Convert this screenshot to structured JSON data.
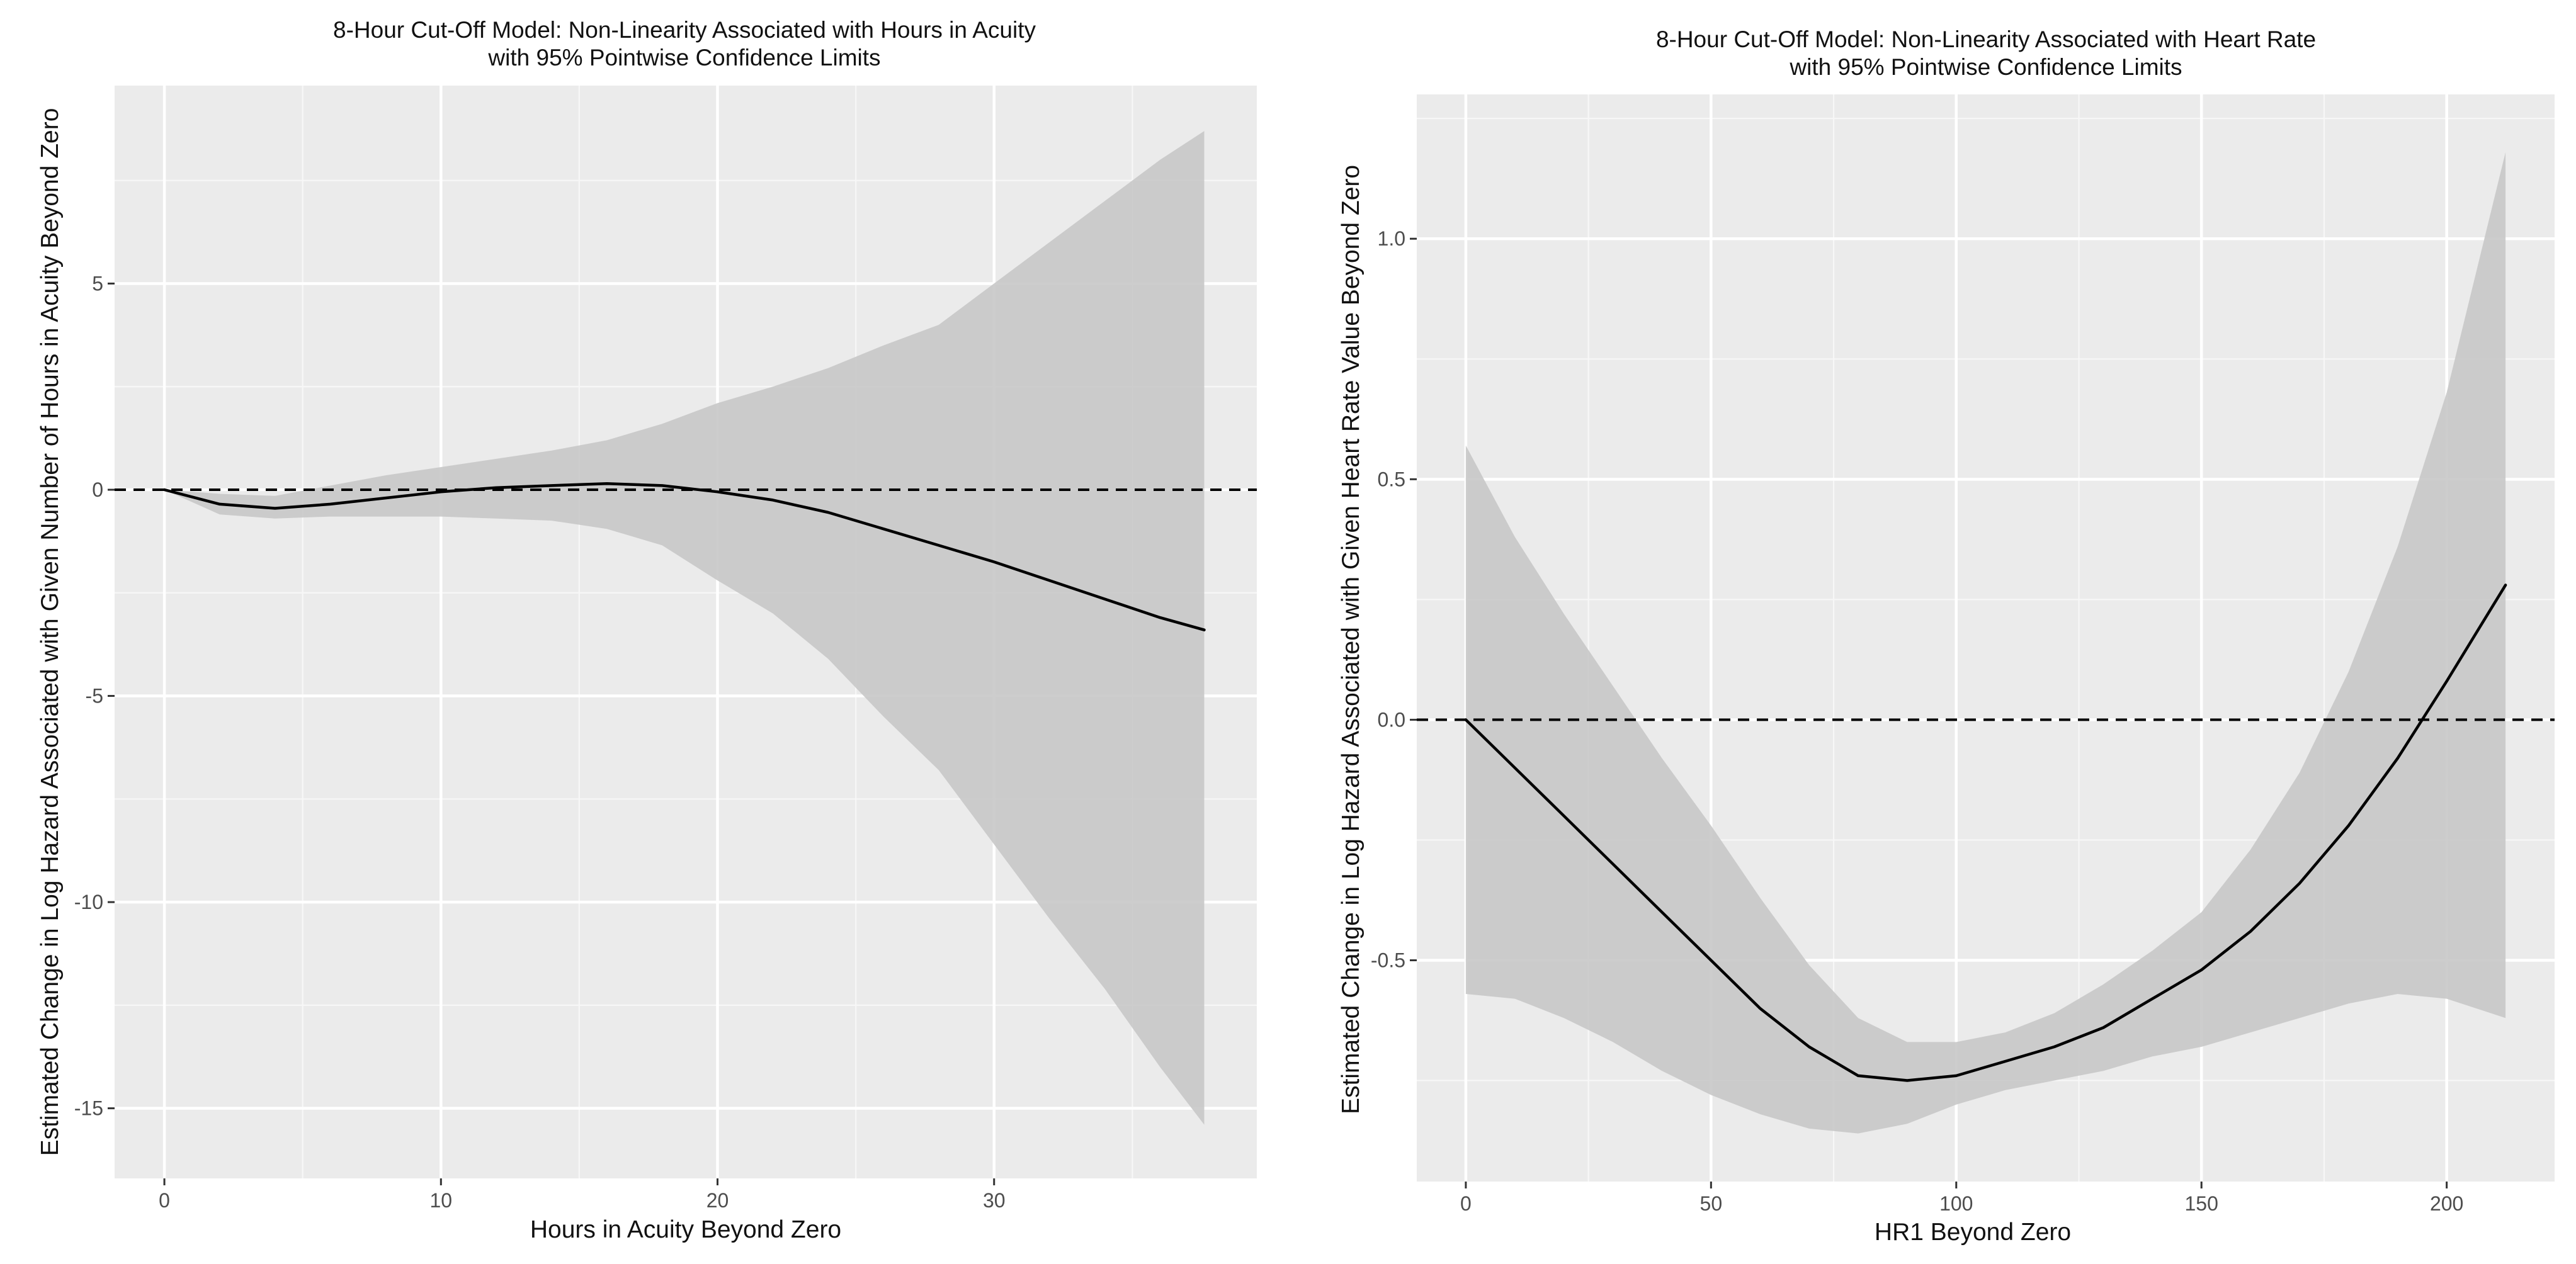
{
  "chart_data": [
    {
      "type": "line",
      "title": "8-Hour Cut-Off Model: Non-Linearity Associated with Hours in Acuity",
      "subtitle": "with 95% Pointwise Confidence Limits",
      "xlabel": "Hours in Acuity Beyond Zero",
      "ylabel": "Estimated Change in Log Hazard Associated with Given Number of Hours in Acuity Beyond Zero",
      "xlim": [
        -1.8,
        39.5
      ],
      "ylim": [
        -16.7,
        9.8
      ],
      "xticks": [
        0,
        10,
        20,
        30
      ],
      "xtick_labels": [
        "0",
        "10",
        "20",
        "30"
      ],
      "yticks": [
        5,
        0,
        -5,
        -10,
        -15
      ],
      "ytick_labels": [
        "5",
        "0",
        "-5",
        "-10",
        "-15"
      ],
      "reference_line_y": 0,
      "grid": true,
      "series": [
        {
          "name": "estimate",
          "x": [
            0,
            2,
            4,
            6,
            8,
            10,
            12,
            14,
            16,
            18,
            20,
            22,
            24,
            26,
            28,
            30,
            32,
            34,
            36,
            37.6
          ],
          "y": [
            0,
            -0.35,
            -0.45,
            -0.35,
            -0.2,
            -0.05,
            0.05,
            0.1,
            0.15,
            0.1,
            -0.05,
            -0.25,
            -0.55,
            -0.95,
            -1.35,
            -1.75,
            -2.2,
            -2.65,
            -3.1,
            -3.4
          ],
          "lower": [
            0,
            -0.6,
            -0.7,
            -0.65,
            -0.65,
            -0.65,
            -0.7,
            -0.75,
            -0.95,
            -1.35,
            -2.2,
            -3.0,
            -4.1,
            -5.5,
            -6.8,
            -8.6,
            -10.4,
            -12.1,
            -14.0,
            -15.4
          ],
          "upper": [
            0,
            -0.1,
            -0.15,
            0.1,
            0.35,
            0.55,
            0.75,
            0.95,
            1.2,
            1.6,
            2.1,
            2.5,
            2.95,
            3.5,
            4.0,
            5.0,
            6.0,
            7.0,
            8.0,
            8.7
          ]
        }
      ]
    },
    {
      "type": "line",
      "title": "8-Hour Cut-Off Model: Non-Linearity Associated with Heart Rate",
      "subtitle": "with 95% Pointwise Confidence Limits",
      "xlabel": "HR1 Beyond Zero",
      "ylabel": "Estimated Change in Log Hazard Associated with Given Heart Rate Value Beyond Zero",
      "xlim": [
        -10,
        222
      ],
      "ylim": [
        -0.96,
        1.3
      ],
      "xticks": [
        0,
        50,
        100,
        150,
        200
      ],
      "xtick_labels": [
        "0",
        "50",
        "100",
        "150",
        "200"
      ],
      "yticks": [
        1.0,
        0.5,
        0.0,
        -0.5
      ],
      "ytick_labels": [
        "1.0",
        "0.5",
        "0.0",
        "-0.5"
      ],
      "reference_line_y": 0,
      "grid": true,
      "series": [
        {
          "name": "estimate",
          "x": [
            0,
            10,
            20,
            30,
            40,
            50,
            60,
            70,
            80,
            90,
            100,
            110,
            120,
            130,
            140,
            150,
            160,
            170,
            180,
            190,
            200,
            212
          ],
          "y": [
            0,
            -0.1,
            -0.2,
            -0.3,
            -0.4,
            -0.5,
            -0.6,
            -0.68,
            -0.74,
            -0.75,
            -0.74,
            -0.71,
            -0.68,
            -0.64,
            -0.58,
            -0.52,
            -0.44,
            -0.34,
            -0.22,
            -0.08,
            0.08,
            0.28
          ],
          "lower": [
            -0.57,
            -0.58,
            -0.62,
            -0.67,
            -0.73,
            -0.78,
            -0.82,
            -0.85,
            -0.86,
            -0.84,
            -0.8,
            -0.77,
            -0.75,
            -0.73,
            -0.7,
            -0.68,
            -0.65,
            -0.62,
            -0.59,
            -0.57,
            -0.58,
            -0.62
          ],
          "upper": [
            0.57,
            0.38,
            0.22,
            0.07,
            -0.08,
            -0.22,
            -0.37,
            -0.51,
            -0.62,
            -0.67,
            -0.67,
            -0.65,
            -0.61,
            -0.55,
            -0.48,
            -0.4,
            -0.27,
            -0.11,
            0.1,
            0.36,
            0.68,
            1.18
          ]
        }
      ]
    }
  ]
}
